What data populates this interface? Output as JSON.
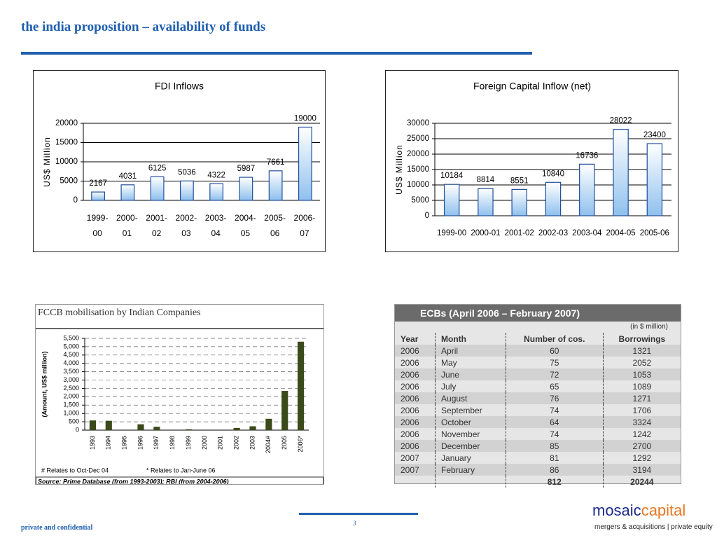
{
  "header": {
    "title": "the india proposition – availability of funds"
  },
  "chart_data": [
    {
      "type": "bar",
      "title": "FDI Inflows",
      "y_label": "US$ Million",
      "categories": [
        "1999-00",
        "2000-01",
        "2001-02",
        "2002-03",
        "2003-04",
        "2004-05",
        "2005-06",
        "2006-07"
      ],
      "values": [
        2167,
        4031,
        6125,
        5036,
        4322,
        5987,
        7661,
        19000
      ],
      "color": "#1f4e9c",
      "ylim": [
        0,
        20000
      ],
      "yticks": [
        0,
        5000,
        10000,
        15000,
        20000
      ],
      "grid": true,
      "data_labels": true
    },
    {
      "type": "bar",
      "title": "Foreign Capital Inflow (net)",
      "y_label": "US$ Million",
      "categories": [
        "1999-00",
        "2000-01",
        "2001-02",
        "2002-03",
        "2003-04",
        "2004-05",
        "2005-06"
      ],
      "values": [
        10184,
        8814,
        8551,
        10840,
        16736,
        28022,
        23400
      ],
      "color": "#1f4e9c",
      "ylim": [
        0,
        30000
      ],
      "yticks": [
        0,
        5000,
        10000,
        15000,
        20000,
        25000,
        30000
      ],
      "grid": true,
      "data_labels": true
    },
    {
      "type": "bar",
      "title": "FCCB mobilisation by Indian Companies",
      "y_label": "(Amount, US$ million)",
      "categories": [
        "1993",
        "1994",
        "1995",
        "1996",
        "1997",
        "1998",
        "1999",
        "2000",
        "2001",
        "2002",
        "2003",
        "2004#",
        "2005",
        "2006*"
      ],
      "values": [
        580,
        560,
        0,
        350,
        200,
        0,
        50,
        0,
        0,
        130,
        230,
        680,
        2350,
        5300
      ],
      "color": "#3b4a1a",
      "ylim": [
        0,
        5500
      ],
      "yticks": [
        0,
        500,
        {
          "value": 1000,
          "label": "1,000"
        },
        {
          "value": 1500,
          "label": "1,500"
        },
        {
          "value": 2000,
          "label": "2,000"
        },
        {
          "value": 2500,
          "label": "2,500"
        },
        {
          "value": 3000,
          "label": "3,000"
        },
        {
          "value": 3500,
          "label": "3,500"
        },
        {
          "value": 4000,
          "label": "4,000"
        },
        {
          "value": 4500,
          "label": "4,500"
        },
        {
          "value": 5000,
          "label": "5,000"
        },
        {
          "value": 5500,
          "label": "5,500"
        }
      ],
      "grid": true,
      "grid_style": "dashed",
      "data_labels": false,
      "footnotes": [
        "# Relates to Oct-Dec 04",
        "* Relates to Jan-June 06"
      ],
      "source": "Source:  Prime Database (from 1993-2003); RBI (from 2004-2006)"
    }
  ],
  "table": {
    "title": "ECBs (April 2006 – February 2007)",
    "unit": "(in $ million)",
    "columns": [
      "Year",
      "Month",
      "Number of cos.",
      "Borrowings"
    ],
    "rows": [
      [
        "2006",
        "April",
        60,
        1321
      ],
      [
        "2006",
        "May",
        75,
        2052
      ],
      [
        "2006",
        "June",
        72,
        1053
      ],
      [
        "2006",
        "July",
        65,
        1089
      ],
      [
        "2006",
        "August",
        76,
        1271
      ],
      [
        "2006",
        "September",
        74,
        1706
      ],
      [
        "2006",
        "October",
        64,
        3324
      ],
      [
        "2006",
        "November",
        74,
        1242
      ],
      [
        "2006",
        "December",
        85,
        2700
      ],
      [
        "2007",
        "January",
        81,
        1292
      ],
      [
        "2007",
        "February",
        86,
        3194
      ]
    ],
    "total_cos": 812,
    "total_borrowings": 20244
  },
  "footer": {
    "confidential": "private and confidential",
    "page": "3",
    "brand_a": "mosaic",
    "brand_b": "capital",
    "tagline": "mergers & acquisitions | private equity"
  }
}
